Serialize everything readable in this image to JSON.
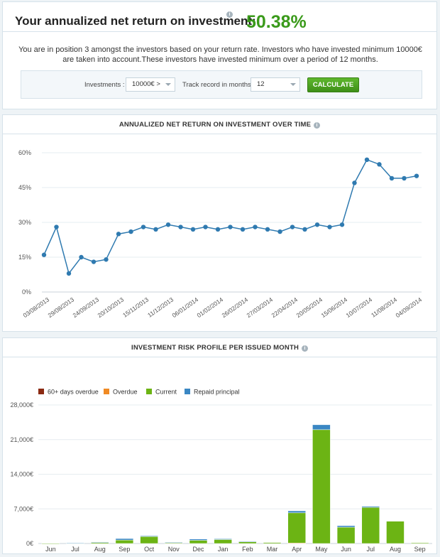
{
  "top": {
    "title": "Your annualized net return on investment:",
    "value": "50.38%",
    "info_icon": "info-icon",
    "description": "You are in position 3 amongst the investors based on your return rate. Investors who have invested minimum 10000€ are taken into account.These investors have invested minimum over a period of 12 months."
  },
  "filters": {
    "investments_label": "Investments :",
    "investments_value": "10000€ >",
    "track_label": "Track record in months:",
    "track_value": "12",
    "calculate_label": "CALCULATE"
  },
  "colors": {
    "line": "#2f7ab0",
    "overdue60": "#8b2a12",
    "overdue": "#f08a24",
    "current": "#6cb414",
    "repaid": "#3a87c3",
    "accent_green": "#3a9a1a"
  },
  "chart_data": [
    {
      "type": "line",
      "title": "ANNUALIZED NET RETURN ON INVESTMENT OVER TIME",
      "xlabel": "",
      "ylabel": "",
      "ylim": [
        0,
        60
      ],
      "yticks": [
        "0%",
        "15%",
        "30%",
        "45%",
        "60%"
      ],
      "grid": true,
      "x_tick_labels": [
        "03/08/2013",
        "29/08/2013",
        "24/09/2013",
        "20/10/2013",
        "15/11/2013",
        "11/12/2013",
        "06/01/2014",
        "01/02/2014",
        "26/02/2014",
        "27/03/2014",
        "22/04/2014",
        "20/05/2014",
        "15/06/2014",
        "10/07/2014",
        "11/08/2014",
        "04/09/2014"
      ],
      "values": [
        16,
        28,
        8,
        15,
        13,
        14,
        25,
        26,
        28,
        27,
        29,
        28,
        27,
        28,
        27,
        28,
        27,
        28,
        27,
        26,
        28,
        27,
        29,
        28,
        29,
        47,
        57,
        55,
        49,
        49,
        50
      ]
    },
    {
      "type": "bar",
      "stacked": true,
      "title": "INVESTMENT RISK PROFILE PER ISSUED MONTH",
      "xlabel": "",
      "ylabel": "",
      "ylim": [
        0,
        28000
      ],
      "yticks": [
        "0€",
        "7,000€",
        "14,000€",
        "21,000€",
        "28,000€"
      ],
      "legend_position": "top-left",
      "categories": [
        "Jun 2013",
        "Jul 2013",
        "Aug 2013",
        "Sep 2013",
        "Oct 2013",
        "Nov 2013",
        "Dec 2013",
        "Jan 2014",
        "Feb 2014",
        "Mar 2014",
        "Apr 2014",
        "May 2014",
        "Jun 2014",
        "Jul 2014",
        "Aug 2014",
        "Sep 2014"
      ],
      "series": [
        {
          "name": "60+ days overdue",
          "color": "#8b2a12",
          "values": [
            0,
            0,
            0,
            0,
            0,
            0,
            0,
            0,
            0,
            0,
            0,
            0,
            0,
            0,
            0,
            0
          ]
        },
        {
          "name": "Overdue",
          "color": "#f08a24",
          "values": [
            0,
            0,
            0,
            0,
            0,
            0,
            0,
            0,
            0,
            0,
            100,
            0,
            0,
            0,
            0,
            0
          ]
        },
        {
          "name": "Current",
          "color": "#6cb414",
          "values": [
            20,
            100,
            250,
            700,
            1400,
            200,
            650,
            800,
            350,
            200,
            6100,
            23000,
            3300,
            7300,
            4500,
            150
          ]
        },
        {
          "name": "Repaid principal",
          "color": "#3a87c3",
          "values": [
            0,
            50,
            50,
            300,
            150,
            50,
            250,
            150,
            100,
            0,
            400,
            1000,
            300,
            200,
            0,
            0
          ]
        }
      ]
    }
  ]
}
